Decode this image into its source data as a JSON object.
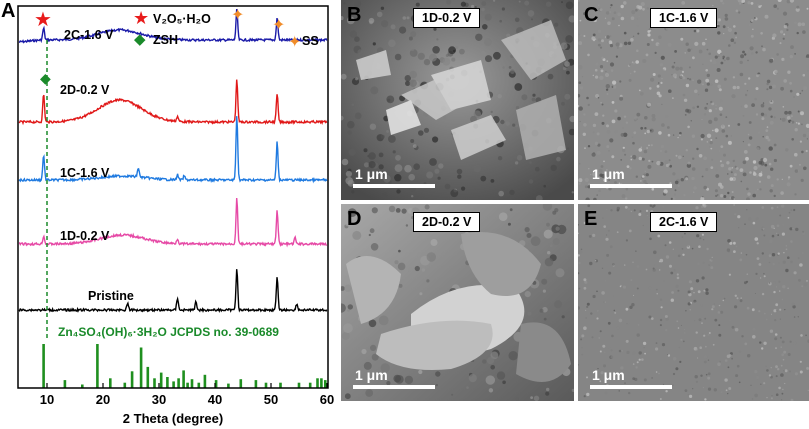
{
  "figure": {
    "panel_a": {
      "letter": "A",
      "xlabel": "2 Theta (degree)",
      "xticks": [
        "10",
        "20",
        "30",
        "40",
        "50",
        "60"
      ],
      "legend": {
        "v2o5": "V₂O₅·H₂O",
        "zsh": "ZSH",
        "ss": "SS"
      },
      "reference_label": "Zn₄SO₄(OH)₆·3H₂O JCPDS no. 39-0689",
      "colors": {
        "2C-1.6 V": "#1a1aa8",
        "2D-0.2 V": "#e01818",
        "1C-1.6 V": "#1f7ae0",
        "1D-0.2 V": "#e64aa6",
        "Pristine": "#000000",
        "reference": "#1f8f1f",
        "star": "#e81b1b",
        "diamond": "#1a8a2a",
        "ss_marker": "#f08c2a"
      }
    },
    "sem_panels": [
      {
        "letter": "B",
        "label": "1D-0.2 V",
        "scale": "1 μm"
      },
      {
        "letter": "C",
        "label": "1C-1.6 V",
        "scale": "1 μm"
      },
      {
        "letter": "D",
        "label": "2D-0.2 V",
        "scale": "1 μm"
      },
      {
        "letter": "E",
        "label": "2C-1.6 V",
        "scale": "1 μm"
      }
    ]
  },
  "chart_data": {
    "type": "line",
    "xlabel": "2 Theta (degree)",
    "ylabel": "",
    "xlim": [
      5,
      60
    ],
    "series": [
      {
        "name": "2C-1.6 V",
        "peaks": [
          9.4,
          43.9,
          51.1
        ],
        "hump": [
          21,
          25
        ]
      },
      {
        "name": "2D-0.2 V",
        "peaks": [
          9.4,
          33.3,
          43.9,
          51.1
        ],
        "hump": [
          21,
          25
        ]
      },
      {
        "name": "1C-1.6 V",
        "peaks": [
          9.4,
          26.3,
          33.3,
          34.5,
          43.9,
          51.1
        ],
        "hump": [
          22,
          25
        ]
      },
      {
        "name": "1D-0.2 V",
        "peaks": [
          9.4,
          33.3,
          43.9,
          51.1,
          54.3
        ],
        "hump": [
          22,
          25
        ]
      },
      {
        "name": "Pristine",
        "peaks": [
          24.4,
          33.3,
          36.6,
          43.9,
          51.1,
          54.6
        ],
        "hump": []
      }
    ],
    "reference": {
      "name": "Zn4SO4(OH)6·3H2O JCPDS no. 39-0689",
      "positions": [
        9.4,
        13.2,
        16.3,
        19.0,
        21.3,
        23.9,
        25.2,
        26.8,
        28.0,
        29.2,
        30.4,
        31.5,
        32.6,
        33.5,
        34.4,
        35.1,
        35.9,
        37.1,
        38.2,
        40.2,
        42.4,
        44.6,
        47.3,
        49.1,
        51.7,
        55.0,
        57.0,
        58.3,
        59.0,
        59.7
      ],
      "intensities": [
        100,
        18,
        8,
        100,
        22,
        12,
        38,
        92,
        48,
        22,
        35,
        25,
        15,
        22,
        40,
        12,
        20,
        12,
        30,
        18,
        10,
        20,
        18,
        12,
        12,
        12,
        12,
        22,
        22,
        18
      ]
    },
    "markers": {
      "v2o5_x": 9.4,
      "zsh_x": 9.4,
      "ss_x": [
        43.9,
        51.1,
        54.4
      ]
    }
  }
}
